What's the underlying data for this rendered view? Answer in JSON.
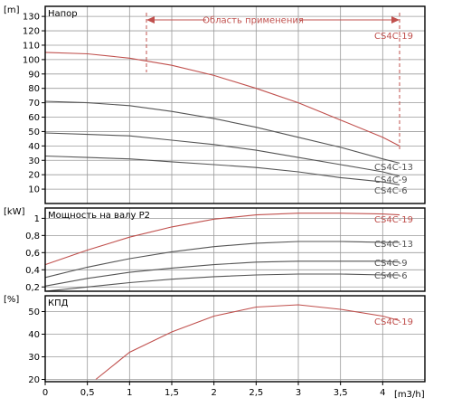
{
  "chart_data": [
    {
      "type": "line",
      "panel": "head",
      "title": "Напор",
      "unit": "[m]",
      "xlabel": "[m3/h]",
      "xlim": [
        0,
        4.5
      ],
      "x_ticks": [
        0,
        0.5,
        1,
        1.5,
        2,
        2.5,
        3,
        3.5,
        4
      ],
      "x_tick_labels": [
        "0",
        "0,5",
        "1",
        "1,5",
        "2",
        "2,5",
        "3",
        "3,5",
        "4"
      ],
      "ylim": [
        0,
        137
      ],
      "y_ticks": [
        10,
        20,
        30,
        40,
        50,
        60,
        70,
        80,
        90,
        100,
        110,
        120,
        130
      ],
      "y_tick_labels": [
        "10",
        "20",
        "30",
        "40",
        "50",
        "60",
        "70",
        "80",
        "90",
        "100",
        "110",
        "120",
        "130"
      ],
      "grid": true,
      "annotation": {
        "text": "Область применения",
        "x_range": [
          1.2,
          4.2
        ]
      },
      "series": [
        {
          "name": "CS4C-19",
          "color": "#c0504d",
          "x": [
            0,
            0.5,
            1,
            1.5,
            2,
            2.5,
            3,
            3.5,
            4,
            4.2
          ],
          "y": [
            105,
            104,
            101,
            96,
            89,
            80,
            70,
            58,
            46,
            40
          ]
        },
        {
          "name": "CS4C-13",
          "color": "#555555",
          "x": [
            0,
            0.5,
            1,
            1.5,
            2,
            2.5,
            3,
            3.5,
            4,
            4.2
          ],
          "y": [
            71,
            70,
            68,
            64,
            59,
            53,
            46,
            39,
            31,
            28
          ]
        },
        {
          "name": "CS4C-9",
          "color": "#555555",
          "x": [
            0,
            0.5,
            1,
            1.5,
            2,
            2.5,
            3,
            3.5,
            4,
            4.2
          ],
          "y": [
            49,
            48,
            47,
            44,
            41,
            37,
            32,
            27,
            22,
            19
          ]
        },
        {
          "name": "CS4C-6",
          "color": "#555555",
          "x": [
            0,
            0.5,
            1,
            1.5,
            2,
            2.5,
            3,
            3.5,
            4,
            4.2
          ],
          "y": [
            33,
            32,
            31,
            29,
            27,
            25,
            22,
            18,
            15,
            13
          ]
        }
      ]
    },
    {
      "type": "line",
      "panel": "power",
      "title": "Мощность на валу P2",
      "unit": "[kW]",
      "xlim": [
        0,
        4.5
      ],
      "ylim": [
        0.15,
        1.12
      ],
      "y_ticks": [
        0.2,
        0.4,
        0.6,
        0.8,
        1
      ],
      "y_tick_labels": [
        "0,2",
        "0,4",
        "0,6",
        "0,8",
        "1"
      ],
      "grid": true,
      "series": [
        {
          "name": "CS4C-19",
          "color": "#c0504d",
          "x": [
            0,
            0.5,
            1,
            1.5,
            2,
            2.5,
            3,
            3.5,
            4,
            4.2
          ],
          "y": [
            0.46,
            0.63,
            0.78,
            0.9,
            0.99,
            1.04,
            1.06,
            1.06,
            1.05,
            1.04
          ]
        },
        {
          "name": "CS4C-13",
          "color": "#555555",
          "x": [
            0,
            0.5,
            1,
            1.5,
            2,
            2.5,
            3,
            3.5,
            4,
            4.2
          ],
          "y": [
            0.31,
            0.43,
            0.53,
            0.61,
            0.67,
            0.71,
            0.73,
            0.73,
            0.72,
            0.72
          ]
        },
        {
          "name": "CS4C-9",
          "color": "#555555",
          "x": [
            0,
            0.5,
            1,
            1.5,
            2,
            2.5,
            3,
            3.5,
            4,
            4.2
          ],
          "y": [
            0.21,
            0.3,
            0.37,
            0.42,
            0.46,
            0.49,
            0.5,
            0.5,
            0.5,
            0.49
          ]
        },
        {
          "name": "CS4C-6",
          "color": "#555555",
          "x": [
            0,
            0.5,
            1,
            1.5,
            2,
            2.5,
            3,
            3.5,
            4,
            4.2
          ],
          "y": [
            0.15,
            0.2,
            0.25,
            0.29,
            0.32,
            0.34,
            0.35,
            0.35,
            0.34,
            0.34
          ]
        }
      ]
    },
    {
      "type": "line",
      "panel": "efficiency",
      "title": "КПД",
      "unit": "[%]",
      "xlim": [
        0,
        4.5
      ],
      "ylim": [
        19,
        57
      ],
      "y_ticks": [
        20,
        30,
        40,
        50
      ],
      "y_tick_labels": [
        "20",
        "30",
        "40",
        "50"
      ],
      "grid": true,
      "series": [
        {
          "name": "CS4C-19",
          "color": "#c0504d",
          "x": [
            0.6,
            1,
            1.5,
            2,
            2.5,
            3,
            3.5,
            4,
            4.2
          ],
          "y": [
            20,
            32,
            41,
            48,
            52,
            53,
            51,
            48,
            46
          ]
        }
      ]
    }
  ]
}
